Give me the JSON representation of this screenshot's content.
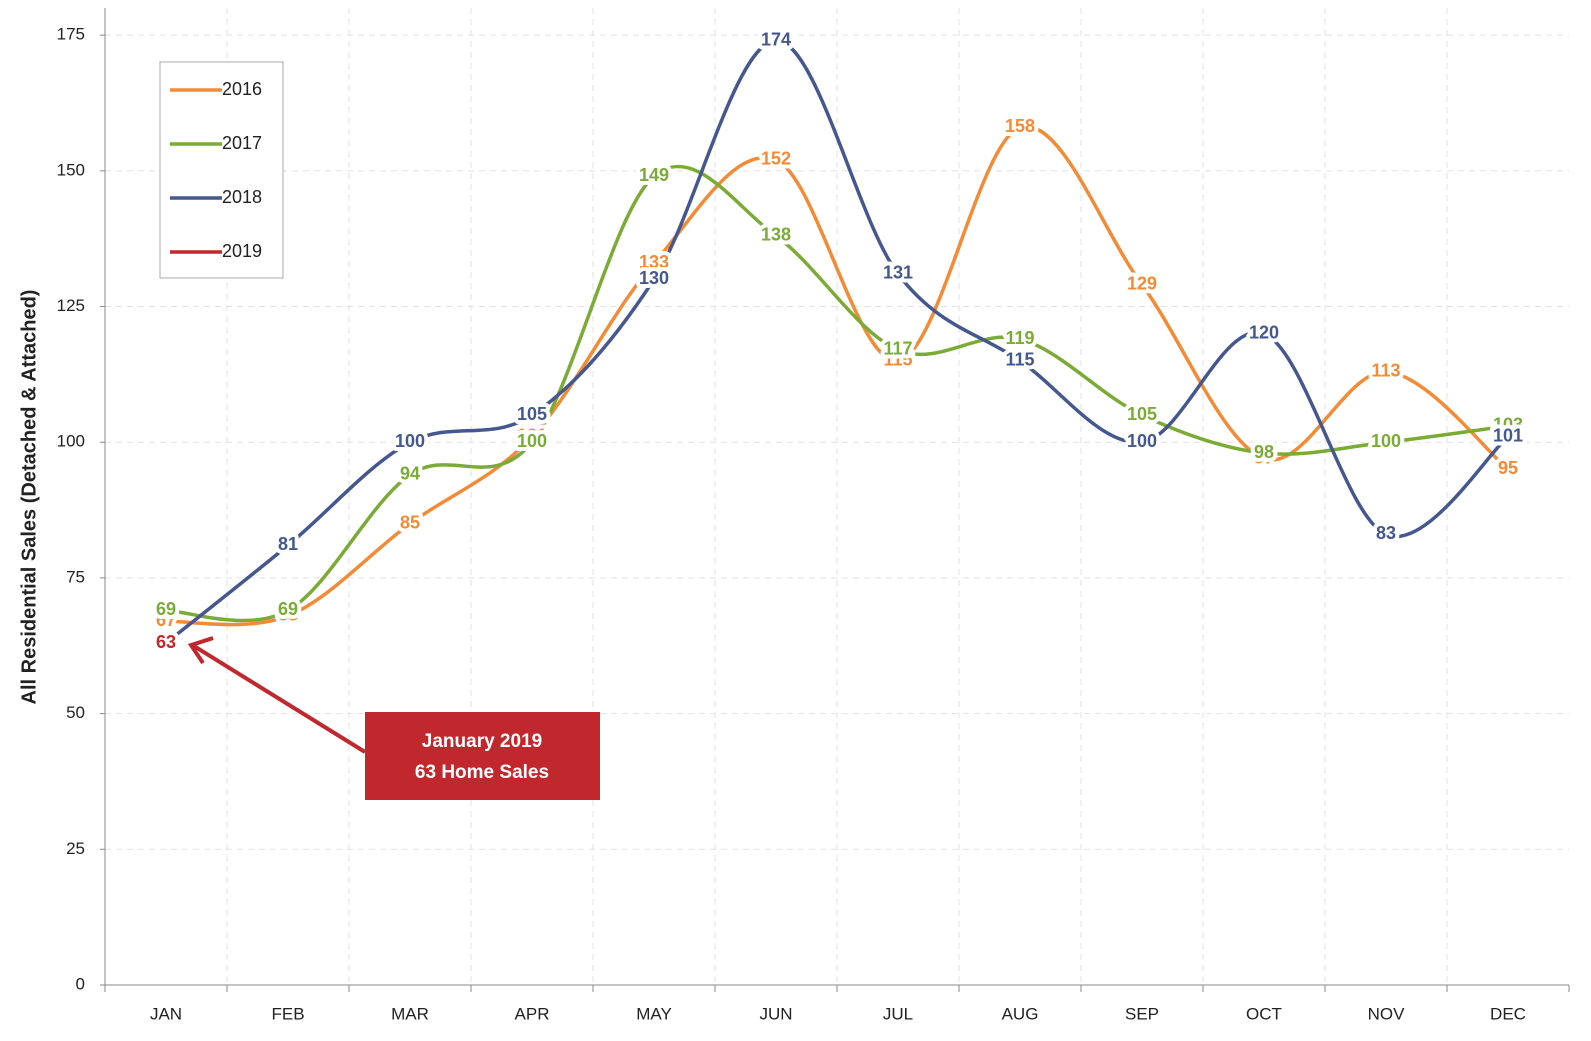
{
  "chart_data": {
    "type": "line",
    "y_label": "All Residential Sales (Detached & Attached)",
    "categories": [
      "JAN",
      "FEB",
      "MAR",
      "APR",
      "MAY",
      "JUN",
      "JUL",
      "AUG",
      "SEP",
      "OCT",
      "NOV",
      "DEC"
    ],
    "series": [
      {
        "name": "2016",
        "color": "#f58a35",
        "values": [
          67,
          68,
          85,
          101,
          133,
          152,
          115,
          158,
          129,
          97,
          113,
          95
        ]
      },
      {
        "name": "2017",
        "color": "#7aab35",
        "values": [
          69,
          69,
          94,
          100,
          149,
          138,
          117,
          119,
          105,
          98,
          100,
          103
        ]
      },
      {
        "name": "2018",
        "color": "#44578f",
        "values": [
          63,
          81,
          100,
          105,
          130,
          174,
          131,
          115,
          100,
          120,
          83,
          101
        ]
      },
      {
        "name": "2019",
        "color": "#c0282d",
        "values": [
          63,
          null,
          null,
          null,
          null,
          null,
          null,
          null,
          null,
          null,
          null,
          null
        ]
      }
    ],
    "ylim": [
      0,
      180
    ],
    "yticks": [
      0,
      25,
      50,
      75,
      100,
      125,
      150,
      175
    ],
    "grid": true,
    "legend": "top-left",
    "smooth": true,
    "annotation": {
      "lines": [
        "January 2019",
        "63 Home Sales"
      ],
      "color": "#c0282d"
    }
  }
}
